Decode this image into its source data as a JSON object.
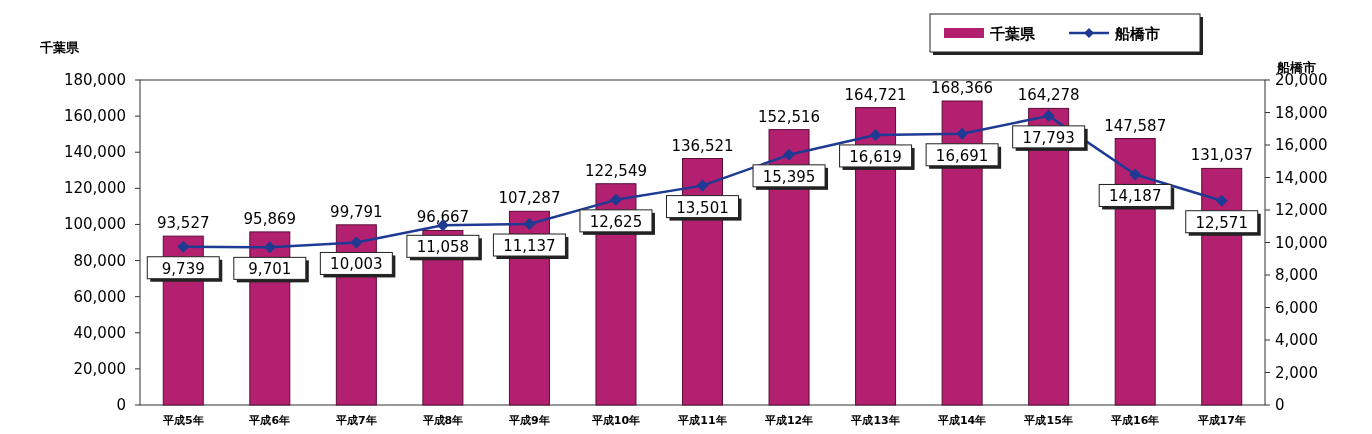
{
  "chart_data": {
    "type": "bar",
    "ylabel": "千葉県",
    "y2label": "船橋市",
    "categories": [
      "平成5年",
      "平成6年",
      "平成7年",
      "平成8年",
      "平成9年",
      "平成10年",
      "平成11年",
      "平成12年",
      "平成13年",
      "平成14年",
      "平成15年",
      "平成16年",
      "平成17年"
    ],
    "series": [
      {
        "name": "千葉県",
        "color": "#b3206f",
        "values": [
          93527,
          95869,
          99791,
          96667,
          107287,
          122549,
          136521,
          152516,
          164721,
          168366,
          164278,
          147587,
          131037
        ],
        "value_labels": [
          "93,527",
          "95,869",
          "99,791",
          "96,667",
          "107,287",
          "122,549",
          "136,521",
          "152,516",
          "164,721",
          "168,366",
          "164,278",
          "147,587",
          "131,037"
        ]
      },
      {
        "name": "船橋市",
        "type": "line",
        "axis": "y2",
        "color": "#1f3a93",
        "marker": "diamond",
        "values": [
          9739,
          9701,
          10003,
          11058,
          11137,
          12625,
          13501,
          15395,
          16619,
          16691,
          17793,
          14187,
          12571
        ],
        "value_labels": [
          "9,739",
          "9,701",
          "10,003",
          "11,058",
          "11,137",
          "12,625",
          "13,501",
          "15,395",
          "16,619",
          "16,691",
          "17,793",
          "14,187",
          "12,571"
        ]
      }
    ],
    "ylim": [
      0,
      180000
    ],
    "yticks": [
      {
        "value": 0,
        "label": "0"
      },
      {
        "value": 20000,
        "label": "20,000"
      },
      {
        "value": 40000,
        "label": "40,000"
      },
      {
        "value": 60000,
        "label": "60,000"
      },
      {
        "value": 80000,
        "label": "80,000"
      },
      {
        "value": 100000,
        "label": "100,000"
      },
      {
        "value": 120000,
        "label": "120,000"
      },
      {
        "value": 140000,
        "label": "140,000"
      },
      {
        "value": 160000,
        "label": "160,000"
      },
      {
        "value": 180000,
        "label": "180,000"
      }
    ],
    "y2lim": [
      0,
      20000
    ],
    "y2ticks": [
      {
        "value": 0,
        "label": "0"
      },
      {
        "value": 2000,
        "label": "2,000"
      },
      {
        "value": 4000,
        "label": "4,000"
      },
      {
        "value": 6000,
        "label": "6,000"
      },
      {
        "value": 8000,
        "label": "8,000"
      },
      {
        "value": 10000,
        "label": "10,000"
      },
      {
        "value": 12000,
        "label": "12,000"
      },
      {
        "value": 14000,
        "label": "14,000"
      },
      {
        "value": 16000,
        "label": "16,000"
      },
      {
        "value": 18000,
        "label": "18,000"
      },
      {
        "value": 20000,
        "label": "20,000"
      }
    ],
    "legend": "top right",
    "grid": false
  }
}
